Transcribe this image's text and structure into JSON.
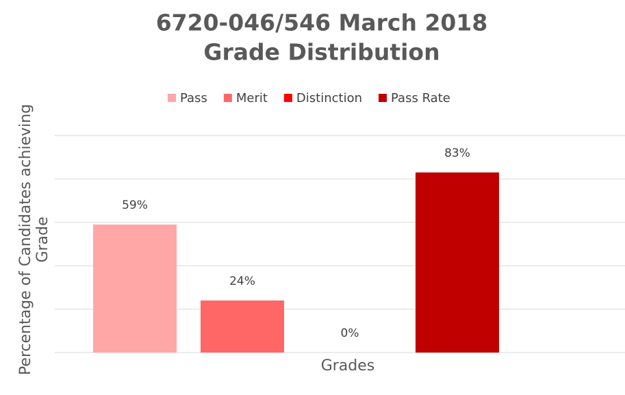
{
  "chart_data": {
    "type": "bar",
    "title": "6720-046/546 March 2018 Grade Distribution",
    "title_lines": [
      "6720-046/546 March 2018",
      "Grade Distribution"
    ],
    "categories": [
      null
    ],
    "xlabel": "Grades",
    "ylabel": "Percentage of Candidates achieving Grade",
    "series": [
      {
        "name": "Pass",
        "color": "#ffa7a7",
        "values": [
          59
        ],
        "value_labels": [
          "59%"
        ]
      },
      {
        "name": "Merit",
        "color": "#ff6666",
        "values": [
          24
        ],
        "value_labels": [
          "24%"
        ]
      },
      {
        "name": "Distinction",
        "color": "#ff0000",
        "values": [
          0
        ],
        "value_labels": [
          "0%"
        ]
      },
      {
        "name": "Pass Rate",
        "color": "#c00000",
        "values": [
          83
        ],
        "value_labels": [
          "83%"
        ]
      }
    ],
    "ylim": [
      0,
      100
    ],
    "yticks": [
      0,
      20,
      40,
      60,
      80,
      100
    ],
    "grid": true,
    "legend": "top"
  }
}
